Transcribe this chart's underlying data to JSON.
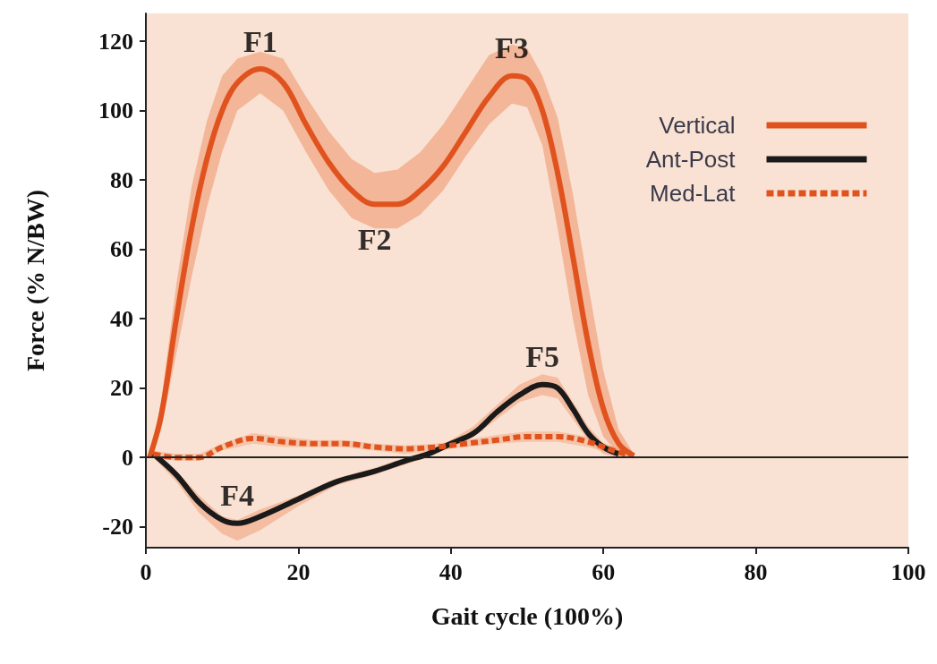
{
  "chart_data": {
    "type": "line",
    "xlabel": "Gait cycle (100%)",
    "ylabel": "Force (% N/BW)",
    "xlim": [
      0,
      100
    ],
    "xticks": [
      0,
      20,
      40,
      60,
      80,
      100
    ],
    "ylim": [
      -26,
      128
    ],
    "yticks": [
      -20,
      0,
      20,
      40,
      60,
      80,
      100,
      120
    ],
    "legend": "top right",
    "ref_lines": [
      {
        "axis": "y",
        "value": 0,
        "color": "#222222"
      }
    ],
    "annotations": [
      {
        "text": "F1",
        "x": 15,
        "y": 112
      },
      {
        "text": "F2",
        "x": 30,
        "y": 73
      },
      {
        "text": "F3",
        "x": 48,
        "y": 110
      },
      {
        "text": "F4",
        "x": 12,
        "y": -19
      },
      {
        "text": "F5",
        "x": 52,
        "y": 21
      }
    ],
    "series": [
      {
        "name": "Vertical",
        "color": "#e0531f",
        "line_style": "solid",
        "x": [
          0.5,
          2,
          4,
          6,
          8,
          10,
          12,
          15,
          18,
          21,
          24,
          27,
          30,
          33,
          36,
          39,
          42,
          45,
          48,
          50,
          52,
          54,
          56,
          58,
          60,
          62,
          64
        ],
        "values": [
          0,
          12,
          40,
          66,
          86,
          100,
          108,
          112,
          108,
          96,
          85,
          77,
          73,
          73,
          77,
          84,
          94,
          104,
          110,
          109,
          100,
          82,
          58,
          33,
          14,
          4,
          0.5
        ],
        "lower": [
          0,
          8,
          30,
          52,
          72,
          88,
          100,
          105,
          100,
          88,
          77,
          69,
          66,
          66,
          70,
          77,
          87,
          96,
          102,
          101,
          90,
          66,
          40,
          18,
          6,
          1,
          0
        ],
        "upper": [
          0,
          16,
          50,
          78,
          97,
          110,
          115,
          117,
          115,
          104,
          94,
          86,
          82,
          83,
          88,
          96,
          106,
          116,
          119,
          118,
          110,
          98,
          76,
          50,
          25,
          8,
          1
        ]
      },
      {
        "name": "Ant-Post",
        "color": "#1a1a1a",
        "line_style": "solid",
        "x": [
          1,
          4,
          7,
          10,
          12,
          15,
          20,
          25,
          30,
          34,
          37,
          40,
          43,
          46,
          49,
          52,
          54,
          56,
          58,
          60,
          62
        ],
        "values": [
          1,
          -5,
          -13,
          -18,
          -19,
          -17,
          -12,
          -7,
          -4,
          -1,
          1,
          4,
          7,
          13,
          18,
          21,
          20,
          14,
          7,
          3,
          1
        ],
        "lower": [
          0,
          -7,
          -16,
          -22,
          -24,
          -21,
          -14,
          -8,
          -5,
          -2,
          0,
          3,
          6,
          11,
          16,
          18,
          17,
          11,
          5,
          1,
          0
        ],
        "upper": [
          1.5,
          -4,
          -11,
          -17,
          -18,
          -15,
          -11,
          -6,
          -3,
          0,
          2,
          5,
          9,
          15,
          21,
          24,
          23,
          16,
          9,
          4,
          2
        ]
      },
      {
        "name": "Med-Lat",
        "color": "#e0531f",
        "line_style": "dashed",
        "x": [
          1,
          4,
          7,
          10,
          14,
          18,
          22,
          26,
          30,
          34,
          38,
          42,
          46,
          50,
          54,
          58,
          62,
          64
        ],
        "values": [
          1,
          0,
          0,
          3,
          5.5,
          4.5,
          4,
          4,
          3,
          2.5,
          3,
          4,
          5,
          6,
          6,
          4.5,
          1.5,
          0.5
        ],
        "lower": [
          0,
          -1,
          -1,
          2,
          4,
          3,
          3,
          3,
          2,
          1,
          2,
          3,
          4,
          4.5,
          4.5,
          3,
          0.5,
          0
        ],
        "upper": [
          2,
          1,
          1,
          4,
          7,
          6,
          5,
          5,
          4,
          3.5,
          4,
          5,
          6.5,
          7.5,
          7.5,
          6,
          2.5,
          1
        ]
      }
    ]
  }
}
